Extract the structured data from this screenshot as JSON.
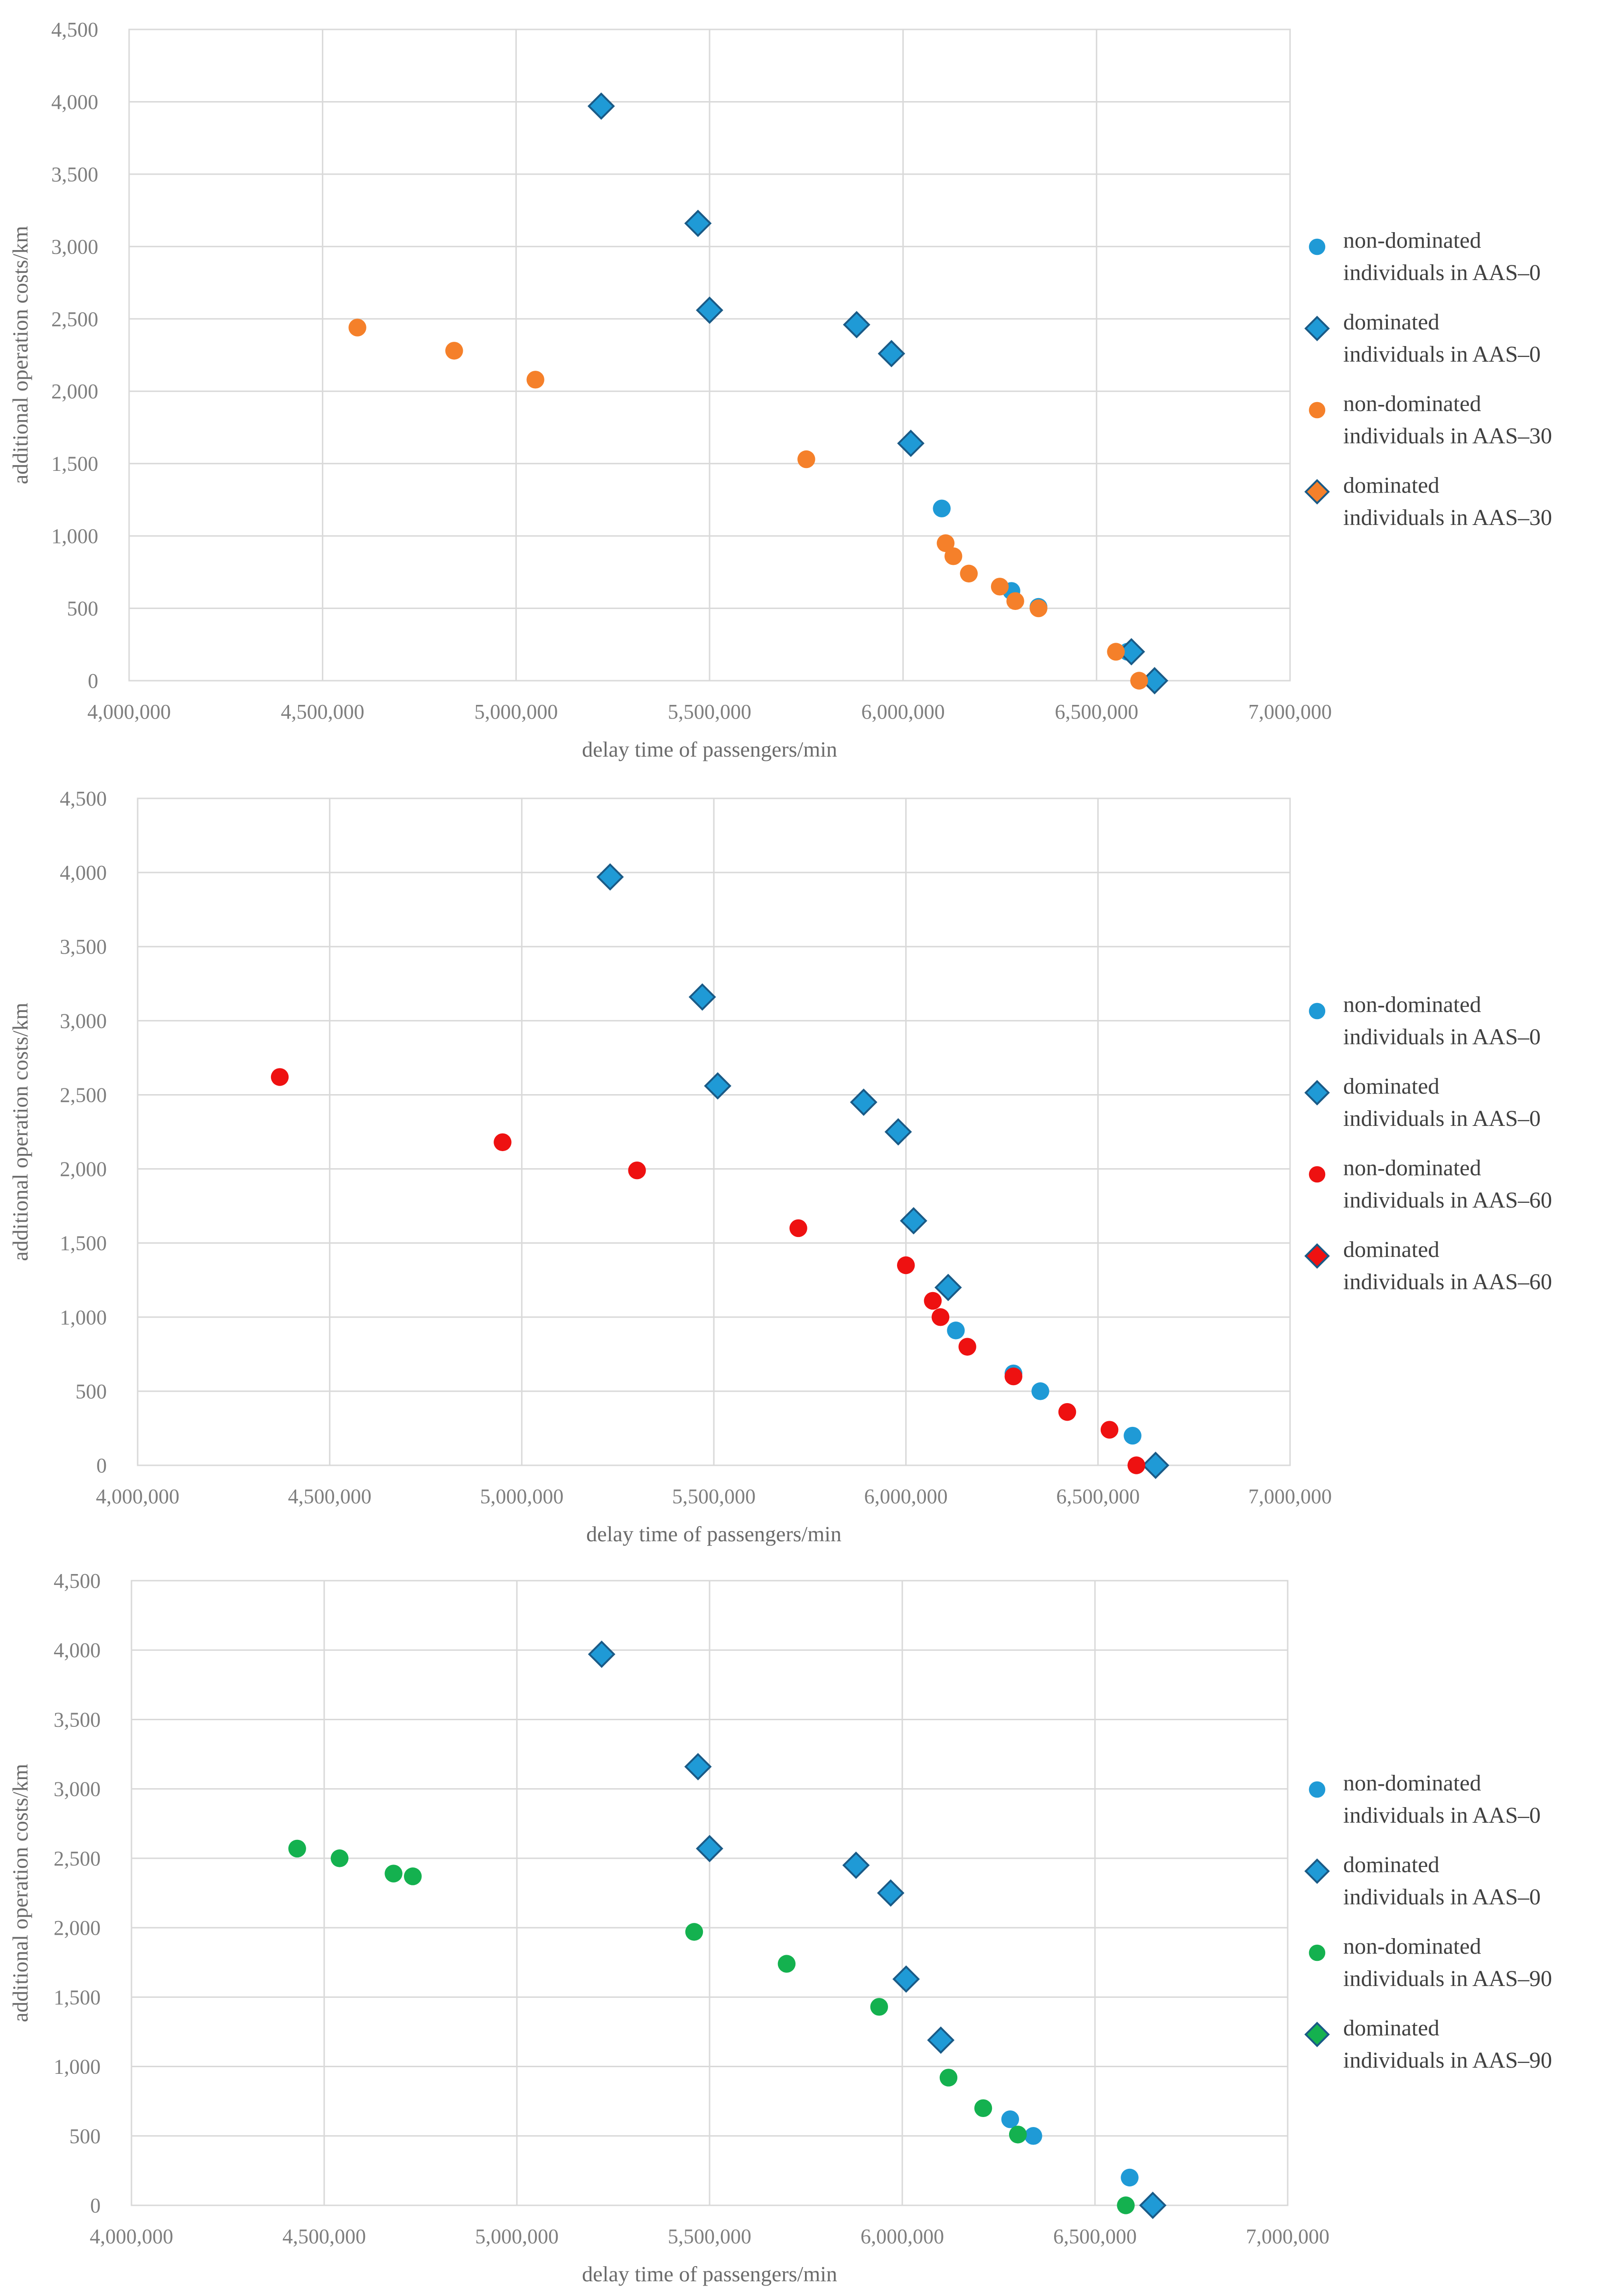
{
  "chart_data": [
    {
      "type": "scatter",
      "title": "",
      "xlabel": "delay time of passengers/min",
      "ylabel": "additional operation costs/km",
      "xlim": [
        4000000,
        7000000
      ],
      "ylim": [
        0,
        4500
      ],
      "x_ticks": [
        "4,000,000",
        "4,500,000",
        "5,000,000",
        "5,500,000",
        "6,000,000",
        "6,500,000",
        "7,000,000"
      ],
      "y_ticks": [
        "0",
        "500",
        "1,000",
        "1,500",
        "2,000",
        "2,500",
        "3,000",
        "3,500",
        "4,000",
        "4,500"
      ],
      "grid": true,
      "legend_position": "right",
      "series": [
        {
          "name": "non-dominated\nindividuals in AAS–0",
          "legend_line1": "non-dominated",
          "legend_line2": "individuals in AAS–0",
          "marker": "circle",
          "color": "#1f9ad6",
          "points": [
            [
              6100000,
              1190
            ],
            [
              6280000,
              620
            ],
            [
              6350000,
              510
            ],
            [
              6580000,
              200
            ]
          ]
        },
        {
          "name": "dominated\nindividuals in AAS–0",
          "legend_line1": "dominated",
          "legend_line2": "individuals in AAS–0",
          "marker": "diamond",
          "color": "#1f9ad6",
          "points": [
            [
              5220000,
              3970
            ],
            [
              5470000,
              3160
            ],
            [
              5500000,
              2560
            ],
            [
              5880000,
              2460
            ],
            [
              5970000,
              2260
            ],
            [
              6020000,
              1640
            ],
            [
              6590000,
              200
            ],
            [
              6650000,
              0
            ]
          ]
        },
        {
          "name": "non-dominated\nindividuals in AAS–30",
          "legend_line1": "non-dominated",
          "legend_line2": "individuals in AAS–30",
          "marker": "circle",
          "color": "#f5802a",
          "points": [
            [
              4590000,
              2440
            ],
            [
              4840000,
              2280
            ],
            [
              5050000,
              2080
            ],
            [
              5750000,
              1530
            ],
            [
              6110000,
              950
            ],
            [
              6130000,
              860
            ],
            [
              6170000,
              740
            ],
            [
              6250000,
              650
            ],
            [
              6290000,
              550
            ],
            [
              6350000,
              500
            ],
            [
              6550000,
              200
            ],
            [
              6610000,
              0
            ]
          ]
        },
        {
          "name": "dominated\nindividuals in AAS–30",
          "legend_line1": "dominated",
          "legend_line2": "individuals in AAS–30",
          "marker": "diamond",
          "color": "#f5802a",
          "points": []
        }
      ]
    },
    {
      "type": "scatter",
      "title": "",
      "xlabel": "delay time of passengers/min",
      "ylabel": "additional operation costs/km",
      "xlim": [
        4000000,
        7000000
      ],
      "ylim": [
        0,
        4500
      ],
      "x_ticks": [
        "4,000,000",
        "4,500,000",
        "5,000,000",
        "5,500,000",
        "6,000,000",
        "6,500,000",
        "7,000,000"
      ],
      "y_ticks": [
        "0",
        "500",
        "1,000",
        "1,500",
        "2,000",
        "2,500",
        "3,000",
        "3,500",
        "4,000",
        "4,500"
      ],
      "grid": true,
      "legend_position": "right",
      "series": [
        {
          "name": "non-dominated\nindividuals in AAS–0",
          "legend_line1": "non-dominated",
          "legend_line2": "individuals in AAS–0",
          "marker": "circle",
          "color": "#1f9ad6",
          "points": [
            [
              6130000,
              910
            ],
            [
              6280000,
              620
            ],
            [
              6350000,
              500
            ],
            [
              6590000,
              200
            ]
          ]
        },
        {
          "name": "dominated\nindividuals in AAS–0",
          "legend_line1": "dominated",
          "legend_line2": "individuals in AAS–0",
          "marker": "diamond",
          "color": "#1f9ad6",
          "points": [
            [
              5230000,
              3970
            ],
            [
              5470000,
              3160
            ],
            [
              5510000,
              2560
            ],
            [
              5890000,
              2450
            ],
            [
              5980000,
              2250
            ],
            [
              6020000,
              1650
            ],
            [
              6110000,
              1200
            ],
            [
              6650000,
              0
            ]
          ]
        },
        {
          "name": "non-dominated\nindividuals in AAS–60",
          "legend_line1": "non-dominated",
          "legend_line2": "individuals in AAS–60",
          "marker": "circle",
          "color": "#ee1111",
          "points": [
            [
              4370000,
              2620
            ],
            [
              4950000,
              2180
            ],
            [
              5300000,
              1990
            ],
            [
              5720000,
              1600
            ],
            [
              6000000,
              1350
            ],
            [
              6070000,
              1110
            ],
            [
              6090000,
              1000
            ],
            [
              6160000,
              800
            ],
            [
              6280000,
              600
            ],
            [
              6420000,
              360
            ],
            [
              6530000,
              240
            ],
            [
              6600000,
              0
            ]
          ]
        },
        {
          "name": "dominated\nindividuals in AAS–60",
          "legend_line1": "dominated",
          "legend_line2": "individuals in AAS–60",
          "marker": "diamond",
          "color": "#ee1111",
          "points": []
        }
      ]
    },
    {
      "type": "scatter",
      "title": "",
      "xlabel": "delay time of passengers/min",
      "ylabel": "additional operation costs/km",
      "xlim": [
        4000000,
        7000000
      ],
      "ylim": [
        0,
        4500
      ],
      "x_ticks": [
        "4,000,000",
        "4,500,000",
        "5,000,000",
        "5,500,000",
        "6,000,000",
        "6,500,000",
        "7,000,000"
      ],
      "y_ticks": [
        "0",
        "500",
        "1,000",
        "1,500",
        "2,000",
        "2,500",
        "3,000",
        "3,500",
        "4,000",
        "4,500"
      ],
      "grid": true,
      "legend_position": "right",
      "series": [
        {
          "name": "non-dominated\nindividuals in AAS–0",
          "legend_line1": "non-dominated",
          "legend_line2": "individuals in AAS–0",
          "marker": "circle",
          "color": "#1f9ad6",
          "points": [
            [
              6280000,
              620
            ],
            [
              6340000,
              500
            ],
            [
              6590000,
              200
            ]
          ]
        },
        {
          "name": "dominated\nindividuals in AAS–0",
          "legend_line1": "dominated",
          "legend_line2": "individuals in AAS–0",
          "marker": "diamond",
          "color": "#1f9ad6",
          "points": [
            [
              5220000,
              3970
            ],
            [
              5470000,
              3160
            ],
            [
              5500000,
              2570
            ],
            [
              5880000,
              2450
            ],
            [
              5970000,
              2250
            ],
            [
              6010000,
              1630
            ],
            [
              6100000,
              1190
            ],
            [
              6650000,
              0
            ]
          ]
        },
        {
          "name": "non-dominated\nindividuals in AAS–90",
          "legend_line1": "non-dominated",
          "legend_line2": "individuals in AAS–90",
          "marker": "circle",
          "color": "#14b14f",
          "points": [
            [
              4430000,
              2570
            ],
            [
              4540000,
              2500
            ],
            [
              4680000,
              2390
            ],
            [
              4730000,
              2370
            ],
            [
              5460000,
              1970
            ],
            [
              5700000,
              1740
            ],
            [
              5940000,
              1430
            ],
            [
              6120000,
              920
            ],
            [
              6210000,
              700
            ],
            [
              6300000,
              510
            ],
            [
              6580000,
              0
            ]
          ]
        },
        {
          "name": "dominated\nindividuals in AAS–90",
          "legend_line1": "dominated",
          "legend_line2": "individuals in AAS–90",
          "marker": "diamond",
          "color": "#14b14f",
          "points": []
        }
      ]
    }
  ]
}
